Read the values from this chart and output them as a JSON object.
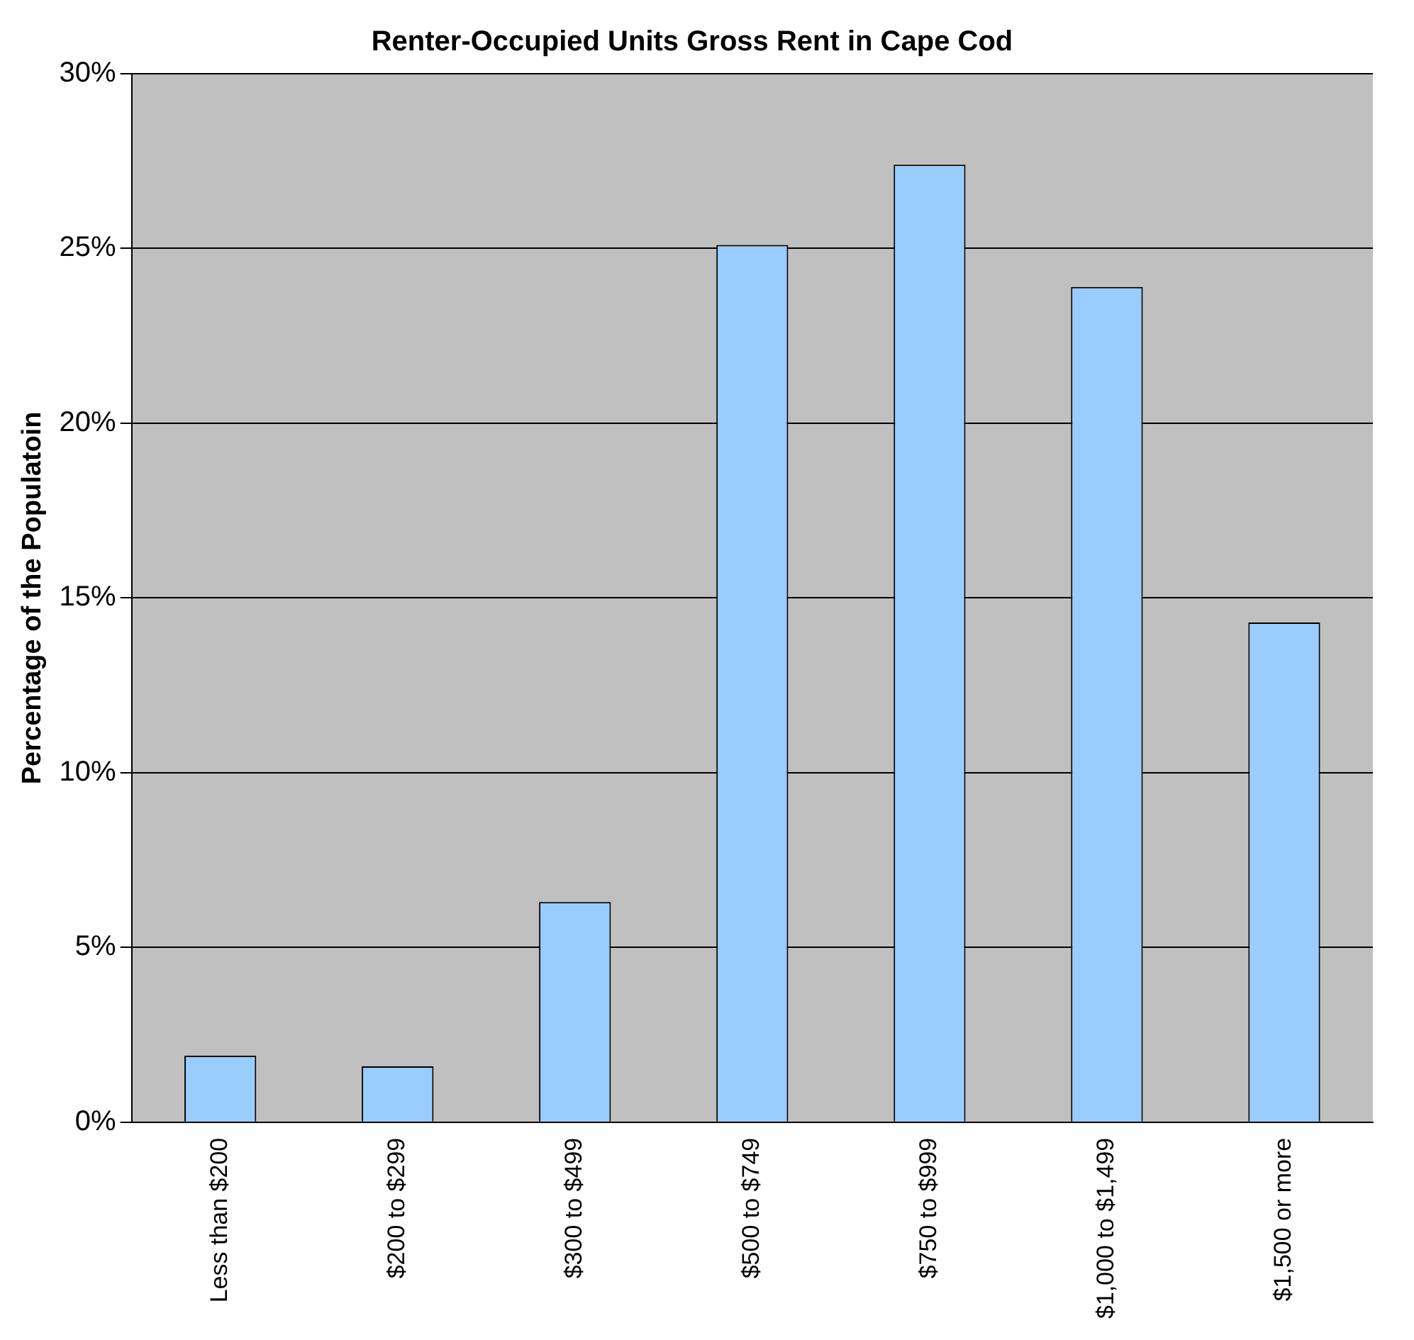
{
  "chart_data": {
    "type": "bar",
    "title": "Renter-Occupied Units Gross Rent in Cape Cod",
    "ylabel": "Percentage of the Populatoin",
    "categories": [
      "Less than $200",
      "$200 to $299",
      "$300 to $499",
      "$500 to $749",
      "$750 to $999",
      "$1,000 to $1,499",
      "$1,500 or more"
    ],
    "values": [
      1.9,
      1.6,
      6.3,
      25.1,
      27.4,
      23.9,
      14.3
    ],
    "color": "#99ccff",
    "ylim": [
      0,
      30
    ],
    "yticks": [
      {
        "value": 0,
        "label": "0%"
      },
      {
        "value": 5,
        "label": "5%"
      },
      {
        "value": 10,
        "label": "10%"
      },
      {
        "value": 15,
        "label": "15%"
      },
      {
        "value": 20,
        "label": "20%"
      },
      {
        "value": 25,
        "label": "25%"
      },
      {
        "value": 30,
        "label": "30%"
      }
    ],
    "grid": "y",
    "legend": false
  }
}
